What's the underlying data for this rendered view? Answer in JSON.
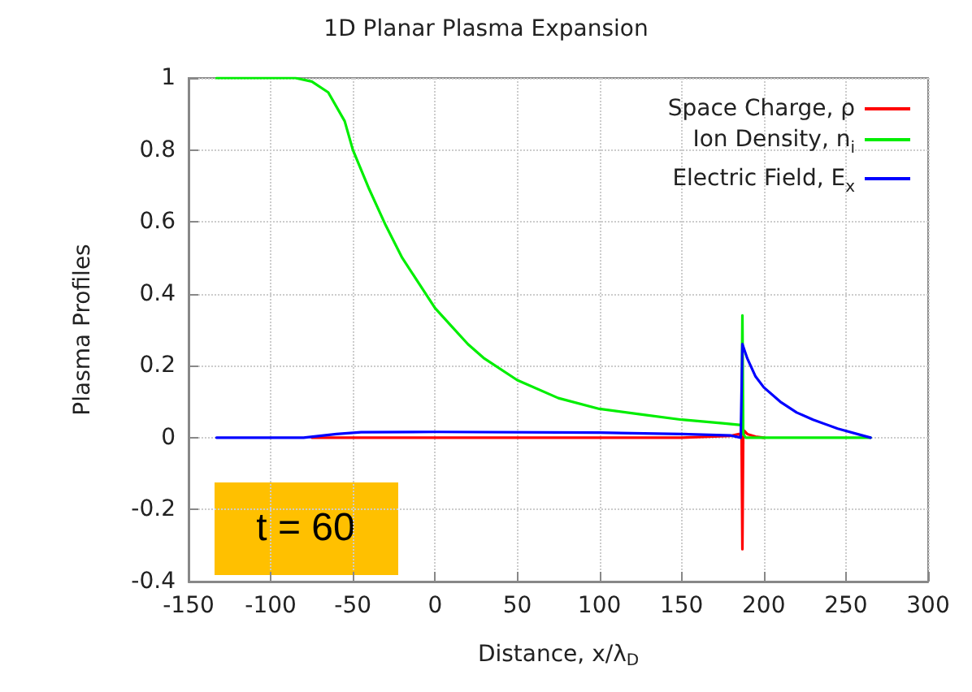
{
  "chart_data": {
    "type": "line",
    "title": "1D Planar Plasma Expansion",
    "xlabel": "Distance, x/λ$_{D}$",
    "ylabel": "Plasma Profiles",
    "annotations": [
      "t = 60"
    ],
    "xlim": [
      -150,
      300
    ],
    "xticks": [
      -150,
      -100,
      -50,
      0,
      50,
      100,
      150,
      200,
      250,
      300
    ],
    "ylim": [
      -0.4,
      1
    ],
    "yticks": [
      -0.4,
      -0.2,
      0,
      0.2,
      0.4,
      0.6,
      0.8,
      1
    ],
    "grid": true,
    "legend": "top right",
    "marker": "none",
    "line_style": "solid",
    "series": [
      {
        "name": "Space Charge, ρ",
        "color": "#ff0000",
        "x": [
          -75,
          -50,
          0,
          100,
          150,
          180,
          185,
          186.5,
          187,
          187.5,
          188,
          190,
          195,
          200
        ],
        "values": [
          0,
          0,
          0,
          0,
          0,
          0.005,
          0.01,
          0,
          -0.31,
          0,
          0.02,
          0.01,
          0.003,
          0
        ]
      },
      {
        "name": "Ion Density, n$_{i}$",
        "color": "#00ee00",
        "x": [
          -133,
          -85,
          -75,
          -65,
          -55,
          -50,
          -40,
          -30,
          -20,
          -10,
          0,
          10,
          20,
          30,
          50,
          75,
          100,
          125,
          150,
          175,
          186.5,
          187,
          187.5,
          189,
          200,
          265
        ],
        "values": [
          1,
          1,
          0.99,
          0.96,
          0.88,
          0.8,
          0.69,
          0.59,
          0.5,
          0.43,
          0.36,
          0.31,
          0.26,
          0.22,
          0.16,
          0.11,
          0.08,
          0.065,
          0.05,
          0.04,
          0.035,
          0.34,
          0.01,
          0,
          0,
          0
        ]
      },
      {
        "name": "Electric Field, E$_{x}$",
        "color": "#0000ff",
        "x": [
          -133,
          -80,
          -60,
          -45,
          0,
          100,
          150,
          180,
          186,
          187,
          190,
          195,
          200,
          210,
          220,
          230,
          245,
          265
        ],
        "values": [
          0,
          0,
          0.01,
          0.015,
          0.016,
          0.014,
          0.01,
          0.006,
          0,
          0.26,
          0.22,
          0.17,
          0.14,
          0.1,
          0.07,
          0.05,
          0.025,
          0
        ]
      }
    ]
  }
}
